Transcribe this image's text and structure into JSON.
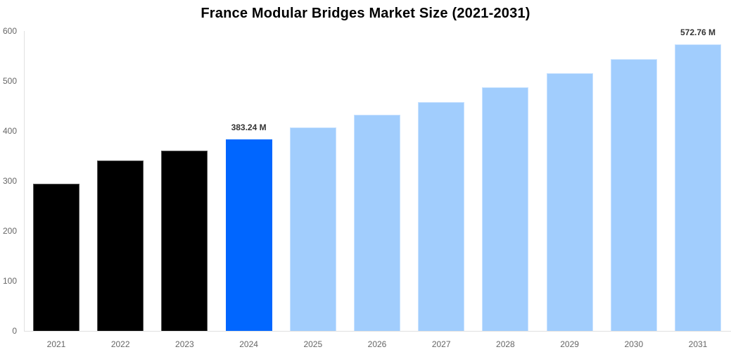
{
  "chart_data": {
    "type": "bar",
    "title": "France Modular Bridges Market Size (2021-2031)",
    "xlabel": "",
    "ylabel": "",
    "ylim": [
      0,
      600
    ],
    "yticks": [
      0,
      100,
      200,
      300,
      400,
      500,
      600
    ],
    "grid": false,
    "legend": null,
    "categories": [
      "2021",
      "2022",
      "2023",
      "2024",
      "2025",
      "2026",
      "2027",
      "2028",
      "2029",
      "2030",
      "2031"
    ],
    "values": [
      294,
      341,
      360,
      383.24,
      407,
      432,
      458,
      487,
      515,
      543,
      572.76
    ],
    "bar_kinds": [
      "historical",
      "historical",
      "historical",
      "current",
      "forecast",
      "forecast",
      "forecast",
      "forecast",
      "forecast",
      "forecast",
      "forecast"
    ],
    "annotations": [
      {
        "category": "2024",
        "text": "383.24 M"
      },
      {
        "category": "2031",
        "text": "572.76 M"
      }
    ],
    "colors": {
      "historical": "#000000",
      "current": "#0066ff",
      "forecast": "#a1cdfd"
    }
  }
}
